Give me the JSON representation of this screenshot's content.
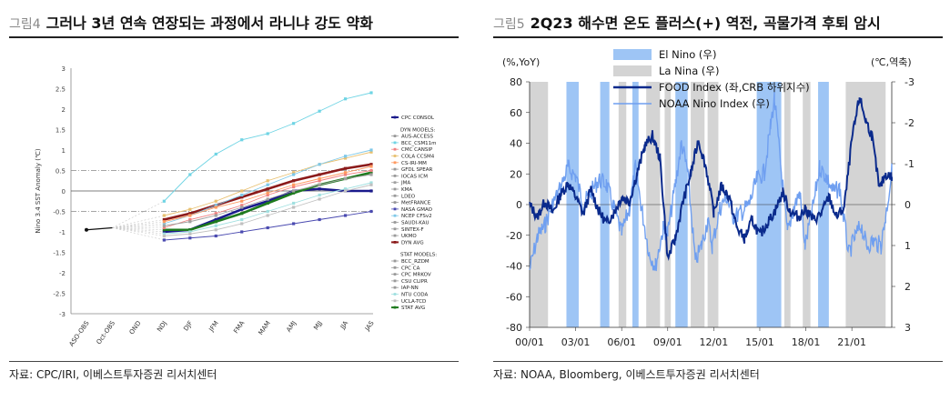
{
  "left": {
    "fig_label": "그림4",
    "title": "그러나 3년 연속 연장되는 과정에서 라니냐 강도 약화",
    "source": "자료: CPC/IRI, 이베스트투자증권 리서치센터",
    "chart_data": {
      "type": "line",
      "ylabel": "Nino 3.4 SST Anomaly (℃)",
      "ylim": [
        -3,
        3
      ],
      "yticks": [
        "3",
        "2.5",
        "2",
        "1.5",
        "1",
        "0.5",
        "0",
        "-0.5",
        "-1",
        "-1.5",
        "-2",
        "-2.5",
        "-3"
      ],
      "categories": [
        "ASO-OBS",
        "Oct-OBS",
        "OND",
        "NDJ",
        "DJF",
        "JFM",
        "FMA",
        "MAM",
        "AMJ",
        "MJJ",
        "JJA",
        "JAS"
      ],
      "reference_lines": [
        0.5,
        0,
        -0.5
      ],
      "observed": [
        -0.95,
        -0.9
      ],
      "legend_groups": [
        {
          "heading": "",
          "items": [
            "CPC CONSOL"
          ]
        },
        {
          "heading": "DYN MODELS:",
          "items": [
            "AUS-ACCESS",
            "BCC_CSM11m",
            "CMC CANSIP",
            "COLA CCSM4",
            "CS-IRI-MM",
            "GFDL SPEAR",
            "IOCAS ICM",
            "JMA",
            "KMA",
            "LDEO",
            "MetFRANCE",
            "NASA GMAO",
            "NCEP CFSv2",
            "SAUDI-KAU",
            "SINTEX-F",
            "UKMO",
            "DYN AVG"
          ]
        },
        {
          "heading": "STAT MODELS:",
          "items": [
            "BCC_RZDM",
            "CPC CA",
            "CPC MRKOV",
            "CSU CLIPR",
            "IAP-NN",
            "NTU CODA",
            "UCLA-TCD",
            "STAT AVG"
          ]
        }
      ],
      "series": [
        {
          "name": "CPC CONSOL",
          "color": "#1a1a8c",
          "values": [
            null,
            null,
            null,
            -1.0,
            -0.95,
            -0.7,
            -0.45,
            -0.25,
            0.0,
            0.05,
            0.0,
            0.0
          ]
        },
        {
          "name": "BCC_CSM11m",
          "color": "#6fd4e4",
          "values": [
            null,
            null,
            null,
            -0.25,
            0.4,
            0.9,
            1.25,
            1.4,
            1.65,
            1.95,
            2.25,
            2.4
          ]
        },
        {
          "name": "DYN AVG",
          "color": "#8b1a1a",
          "values": [
            null,
            null,
            null,
            -0.7,
            -0.55,
            -0.35,
            -0.15,
            0.05,
            0.25,
            0.4,
            0.55,
            0.65
          ]
        },
        {
          "name": "STAT AVG",
          "color": "#1e7a1e",
          "values": [
            null,
            null,
            null,
            -0.95,
            -0.95,
            -0.75,
            -0.55,
            -0.3,
            -0.05,
            0.15,
            0.3,
            0.45
          ]
        },
        {
          "name": "NASA GMAO",
          "color": "#4a4ab0",
          "values": [
            null,
            null,
            null,
            -1.2,
            -1.15,
            -1.1,
            -1.0,
            -0.9,
            -0.8,
            -0.7,
            -0.6,
            -0.5
          ]
        },
        {
          "name": "COLA CCSM4",
          "color": "#e8c070",
          "values": [
            null,
            null,
            null,
            -0.6,
            -0.45,
            -0.25,
            0.0,
            0.25,
            0.45,
            0.65,
            0.8,
            0.95
          ]
        },
        {
          "name": "NCEP CFSv2",
          "color": "#7ec8e8",
          "values": [
            null,
            null,
            null,
            -0.8,
            -0.6,
            -0.35,
            -0.1,
            0.15,
            0.4,
            0.65,
            0.85,
            1.0
          ]
        },
        {
          "name": "CMC CANSIP",
          "color": "#f08080",
          "values": [
            null,
            null,
            null,
            -0.9,
            -0.7,
            -0.55,
            -0.35,
            -0.1,
            0.1,
            0.25,
            0.4,
            0.5
          ]
        },
        {
          "name": "CS-IRI-MM",
          "color": "#ff9a60",
          "values": [
            null,
            null,
            null,
            -0.75,
            -0.6,
            -0.4,
            -0.25,
            -0.05,
            0.15,
            0.3,
            0.45,
            0.6
          ]
        },
        {
          "name": "JMA",
          "color": "#a0a0a0",
          "values": [
            null,
            null,
            null,
            -0.85,
            -0.75,
            -0.6,
            -0.4,
            -0.2,
            0.0,
            0.15,
            0.3,
            0.4
          ]
        },
        {
          "name": "NTU CODA",
          "color": "#a0e0e0",
          "values": [
            null,
            null,
            null,
            -1.05,
            -1.0,
            -0.85,
            -0.7,
            -0.5,
            -0.3,
            -0.1,
            0.05,
            0.2
          ]
        },
        {
          "name": "UCLA-TCD",
          "color": "#c0c0c0",
          "values": [
            null,
            null,
            null,
            -1.1,
            -1.05,
            -0.95,
            -0.8,
            -0.6,
            -0.4,
            -0.2,
            0.0,
            0.15
          ]
        }
      ]
    }
  },
  "right": {
    "fig_label": "그림5",
    "title": "2Q23 해수면 온도 플러스(+) 역전, 곡물가격 후퇴 암시",
    "source": "자료: NOAA, Bloomberg, 이베스트투자증권 리서치센터",
    "chart_data": {
      "type": "line",
      "left_axis_label": "(%,YoY)",
      "right_axis_label": "(℃,역축)",
      "ylim_left": [
        -80,
        80
      ],
      "ylim_right": [
        3,
        -3
      ],
      "yticks_left": [
        "80",
        "60",
        "40",
        "20",
        "0",
        "-20",
        "-40",
        "-60",
        "-80"
      ],
      "yticks_right": [
        "-3",
        "-2",
        "-1",
        "0",
        "1",
        "2",
        "3"
      ],
      "x_labels": [
        "00/01",
        "03/01",
        "06/01",
        "09/01",
        "12/01",
        "15/01",
        "18/01",
        "21/01"
      ],
      "x_range": [
        2000,
        2023.6
      ],
      "legend": [
        "El Nino (우)",
        "La Nina (우)",
        "FOOD Index (좌,CRB 하위지수)",
        "NOAA Nino Index (우)"
      ],
      "colors": {
        "el_nino": "#9ec5f5",
        "la_nina": "#d4d4d4",
        "food": "#0a2a8c",
        "nino": "#6f9ff0"
      },
      "el_nino_periods": [
        [
          2002.4,
          2003.2
        ],
        [
          2004.6,
          2005.2
        ],
        [
          2006.7,
          2007.1
        ],
        [
          2009.5,
          2010.3
        ],
        [
          2014.8,
          2016.4
        ],
        [
          2018.8,
          2019.5
        ]
      ],
      "la_nina_periods": [
        [
          2000.0,
          2001.2
        ],
        [
          2005.8,
          2006.3
        ],
        [
          2007.6,
          2008.5
        ],
        [
          2008.8,
          2009.2
        ],
        [
          2010.5,
          2011.4
        ],
        [
          2011.6,
          2012.3
        ],
        [
          2016.6,
          2017.0
        ],
        [
          2017.8,
          2018.3
        ],
        [
          2020.6,
          2023.2
        ]
      ],
      "food_series": [
        [
          2000,
          0
        ],
        [
          2000.5,
          -8
        ],
        [
          2001,
          2
        ],
        [
          2001.5,
          -5
        ],
        [
          2002,
          6
        ],
        [
          2002.5,
          14
        ],
        [
          2003,
          5
        ],
        [
          2003.5,
          -6
        ],
        [
          2004,
          10
        ],
        [
          2004.5,
          -4
        ],
        [
          2005,
          -12
        ],
        [
          2005.5,
          -5
        ],
        [
          2006,
          5
        ],
        [
          2006.5,
          2
        ],
        [
          2007,
          20
        ],
        [
          2007.5,
          38
        ],
        [
          2008,
          45
        ],
        [
          2008.5,
          30
        ],
        [
          2009,
          -35
        ],
        [
          2009.5,
          -22
        ],
        [
          2010,
          2
        ],
        [
          2010.5,
          20
        ],
        [
          2011,
          42
        ],
        [
          2011.5,
          24
        ],
        [
          2012,
          -5
        ],
        [
          2012.5,
          12
        ],
        [
          2013,
          5
        ],
        [
          2013.5,
          -15
        ],
        [
          2014,
          -22
        ],
        [
          2014.5,
          -10
        ],
        [
          2015,
          -20
        ],
        [
          2015.5,
          -12
        ],
        [
          2016,
          -4
        ],
        [
          2016.5,
          8
        ],
        [
          2017,
          -5
        ],
        [
          2017.5,
          -8
        ],
        [
          2018,
          -3
        ],
        [
          2018.5,
          -10
        ],
        [
          2019,
          -6
        ],
        [
          2019.5,
          5
        ],
        [
          2020,
          -8
        ],
        [
          2020.5,
          -2
        ],
        [
          2021,
          42
        ],
        [
          2021.5,
          70
        ],
        [
          2021.9,
          55
        ],
        [
          2022.3,
          45
        ],
        [
          2022.8,
          10
        ],
        [
          2023.2,
          20
        ],
        [
          2023.6,
          18
        ]
      ],
      "nino_series": [
        [
          2000,
          1.6
        ],
        [
          2000.5,
          0.8
        ],
        [
          2001,
          0.5
        ],
        [
          2001.5,
          0.0
        ],
        [
          2002,
          -0.4
        ],
        [
          2002.5,
          -0.9
        ],
        [
          2003,
          -0.7
        ],
        [
          2003.5,
          0.0
        ],
        [
          2004,
          -0.3
        ],
        [
          2004.5,
          -0.6
        ],
        [
          2005,
          -0.5
        ],
        [
          2005.5,
          0.1
        ],
        [
          2006,
          0.7
        ],
        [
          2006.5,
          0.1
        ],
        [
          2006.9,
          -0.9
        ],
        [
          2007.3,
          0.1
        ],
        [
          2007.8,
          1.2
        ],
        [
          2008.2,
          1.5
        ],
        [
          2008.7,
          0.6
        ],
        [
          2009,
          0.7
        ],
        [
          2009.5,
          -0.5
        ],
        [
          2009.9,
          -1.5
        ],
        [
          2010.3,
          -0.8
        ],
        [
          2010.8,
          1.4
        ],
        [
          2011.2,
          1.0
        ],
        [
          2011.6,
          0.4
        ],
        [
          2011.9,
          1.0
        ],
        [
          2012.4,
          0.1
        ],
        [
          2012.8,
          -0.2
        ],
        [
          2013.3,
          0.3
        ],
        [
          2013.8,
          0.2
        ],
        [
          2014.3,
          0.0
        ],
        [
          2014.8,
          -0.6
        ],
        [
          2015.3,
          -0.8
        ],
        [
          2015.7,
          -1.9
        ],
        [
          2015.95,
          -2.6
        ],
        [
          2016.4,
          -0.8
        ],
        [
          2016.8,
          0.7
        ],
        [
          2017.2,
          0.1
        ],
        [
          2017.6,
          -0.3
        ],
        [
          2017.95,
          1.0
        ],
        [
          2018.4,
          0.2
        ],
        [
          2018.9,
          -0.9
        ],
        [
          2019.3,
          -0.7
        ],
        [
          2019.8,
          -0.3
        ],
        [
          2020.2,
          -0.4
        ],
        [
          2020.8,
          1.2
        ],
        [
          2021.2,
          0.8
        ],
        [
          2021.6,
          0.5
        ],
        [
          2021.95,
          1.0
        ],
        [
          2022.4,
          0.9
        ],
        [
          2022.9,
          1.0
        ],
        [
          2023.2,
          0.3
        ],
        [
          2023.6,
          -0.8
        ]
      ]
    }
  }
}
